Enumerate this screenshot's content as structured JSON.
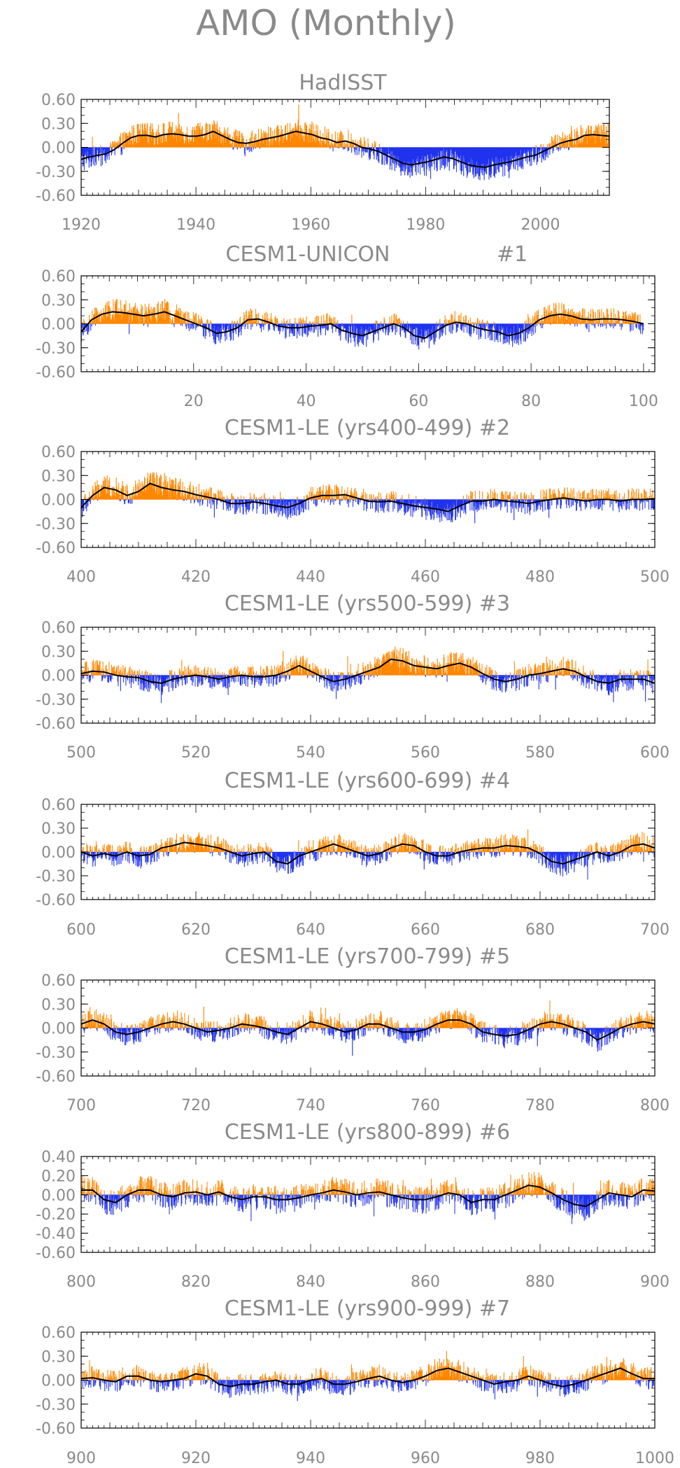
{
  "page_title": "AMO (Monthly)",
  "colors": {
    "positive": "#ff8800",
    "negative": "#2233ee",
    "smooth": "#000000",
    "axis": "#000000",
    "text": "#8a8a8a"
  },
  "chart_data": [
    {
      "type": "bar",
      "title": "HadISST",
      "x_start": 1920,
      "x_end": 2012,
      "xlim": [
        1920,
        2012
      ],
      "xticks": [
        1920,
        1940,
        1960,
        1980,
        2000
      ],
      "ylim": [
        -0.6,
        0.6
      ],
      "yticks": [
        0.6,
        0.3,
        0.0,
        -0.3,
        -0.6
      ],
      "ytick_labels": [
        "0.60",
        "0.30",
        "0.00",
        "-0.30",
        "-0.60"
      ],
      "values": [
        -0.15,
        -0.12,
        -0.1,
        -0.08,
        -0.03,
        0.05,
        0.12,
        0.15,
        0.15,
        0.13,
        0.16,
        0.17,
        0.16,
        0.14,
        0.14,
        0.16,
        0.2,
        0.15,
        0.1,
        0.06,
        0.05,
        0.07,
        0.1,
        0.12,
        0.14,
        0.17,
        0.2,
        0.18,
        0.16,
        0.12,
        0.1,
        0.06,
        0.08,
        0.05,
        0.0,
        -0.02,
        -0.05,
        -0.1,
        -0.15,
        -0.2,
        -0.22,
        -0.2,
        -0.18,
        -0.15,
        -0.12,
        -0.14,
        -0.18,
        -0.22,
        -0.24,
        -0.25,
        -0.22,
        -0.2,
        -0.18,
        -0.15,
        -0.12,
        -0.1,
        -0.05,
        0.0,
        0.05,
        0.08,
        0.1,
        0.15,
        0.16,
        0.15,
        0.14
      ]
    },
    {
      "type": "bar",
      "title": "CESM1-UNICON",
      "title_suffix": "#1",
      "x_start": 0,
      "x_end": 100,
      "xlim": [
        0,
        102
      ],
      "xticks": [
        20,
        40,
        60,
        80,
        100
      ],
      "ylim": [
        -0.6,
        0.6
      ],
      "yticks": [
        0.6,
        0.3,
        0.0,
        -0.3,
        -0.6
      ],
      "ytick_labels": [
        "0.60",
        "0.30",
        "0.00",
        "-0.30",
        "-0.60"
      ],
      "values": [
        -0.1,
        0.05,
        0.12,
        0.15,
        0.14,
        0.12,
        0.1,
        0.12,
        0.15,
        0.1,
        0.05,
        0.0,
        -0.05,
        -0.12,
        -0.1,
        -0.05,
        0.05,
        0.06,
        0.02,
        -0.03,
        -0.05,
        -0.05,
        -0.03,
        -0.02,
        0.0,
        -0.08,
        -0.12,
        -0.15,
        -0.1,
        -0.05,
        0.0,
        -0.05,
        -0.15,
        -0.18,
        -0.1,
        -0.02,
        0.02,
        0.0,
        -0.05,
        -0.08,
        -0.1,
        -0.15,
        -0.12,
        -0.05,
        0.05,
        0.1,
        0.12,
        0.1,
        0.06,
        0.05,
        0.06,
        0.06,
        0.05,
        0.03,
        0.0
      ]
    },
    {
      "type": "bar",
      "title": "CESM1-LE (yrs400-499)",
      "title_suffix": "#2",
      "x_start": 400,
      "x_end": 500,
      "xlim": [
        400,
        500
      ],
      "xticks": [
        400,
        420,
        440,
        460,
        480,
        500
      ],
      "ylim": [
        -0.6,
        0.6
      ],
      "yticks": [
        0.6,
        0.3,
        0.0,
        -0.3,
        -0.6
      ],
      "ytick_labels": [
        "0.60",
        "0.30",
        "0.00",
        "-0.30",
        "-0.60"
      ],
      "values": [
        -0.1,
        0.05,
        0.15,
        0.12,
        0.05,
        0.1,
        0.2,
        0.15,
        0.12,
        0.1,
        0.06,
        0.03,
        0.0,
        -0.05,
        -0.05,
        -0.03,
        -0.05,
        -0.08,
        -0.1,
        -0.05,
        0.02,
        0.05,
        0.05,
        0.06,
        0.02,
        -0.02,
        -0.03,
        -0.02,
        -0.05,
        -0.08,
        -0.1,
        -0.12,
        -0.15,
        -0.08,
        -0.02,
        -0.02,
        0.0,
        -0.02,
        -0.03,
        -0.05,
        -0.02,
        0.0,
        0.02,
        0.0,
        -0.02,
        0.0,
        0.0,
        -0.02,
        0.0,
        0.0,
        0.01
      ]
    },
    {
      "type": "bar",
      "title": "CESM1-LE (yrs500-599)",
      "title_suffix": "#3",
      "x_start": 500,
      "x_end": 600,
      "xlim": [
        500,
        600
      ],
      "xticks": [
        500,
        520,
        540,
        560,
        580,
        600
      ],
      "ylim": [
        -0.6,
        0.6
      ],
      "yticks": [
        0.6,
        0.3,
        0.0,
        -0.3,
        -0.6
      ],
      "ytick_labels": [
        "0.60",
        "0.30",
        "0.00",
        "-0.30",
        "-0.60"
      ],
      "values": [
        0.02,
        0.05,
        0.04,
        0.0,
        -0.02,
        -0.03,
        -0.08,
        -0.1,
        -0.05,
        -0.02,
        0.0,
        -0.02,
        -0.05,
        -0.02,
        0.0,
        -0.02,
        -0.02,
        0.0,
        0.05,
        0.12,
        0.05,
        -0.02,
        -0.08,
        -0.05,
        0.0,
        0.05,
        0.1,
        0.2,
        0.18,
        0.12,
        0.1,
        0.08,
        0.12,
        0.15,
        0.1,
        0.02,
        -0.05,
        -0.08,
        -0.05,
        0.0,
        0.02,
        0.05,
        0.08,
        0.05,
        -0.02,
        -0.08,
        -0.1,
        -0.05,
        -0.05,
        -0.05,
        -0.1
      ]
    },
    {
      "type": "bar",
      "title": "CESM1-LE (yrs600-699)",
      "title_suffix": "#4",
      "x_start": 600,
      "x_end": 700,
      "xlim": [
        600,
        700
      ],
      "xticks": [
        600,
        620,
        640,
        660,
        680,
        700
      ],
      "ylim": [
        -0.6,
        0.6
      ],
      "yticks": [
        0.6,
        0.3,
        0.0,
        -0.3,
        -0.6
      ],
      "ytick_labels": [
        "0.60",
        "0.30",
        "0.00",
        "-0.30",
        "-0.60"
      ],
      "values": [
        0.0,
        -0.05,
        -0.02,
        -0.05,
        0.0,
        -0.05,
        -0.03,
        0.05,
        0.08,
        0.12,
        0.1,
        0.08,
        0.05,
        0.0,
        -0.05,
        -0.02,
        0.0,
        -0.12,
        -0.15,
        -0.05,
        0.0,
        0.05,
        0.1,
        0.05,
        0.0,
        -0.05,
        -0.02,
        0.05,
        0.1,
        0.08,
        0.0,
        -0.05,
        -0.05,
        0.0,
        0.03,
        0.05,
        0.05,
        0.08,
        0.07,
        0.05,
        -0.02,
        -0.12,
        -0.15,
        -0.1,
        -0.05,
        0.0,
        -0.05,
        0.0,
        0.08,
        0.1,
        0.05
      ]
    },
    {
      "type": "bar",
      "title": "CESM1-LE (yrs700-799)",
      "title_suffix": "#5",
      "x_start": 700,
      "x_end": 800,
      "xlim": [
        700,
        800
      ],
      "xticks": [
        700,
        720,
        740,
        760,
        780,
        800
      ],
      "ylim": [
        -0.6,
        0.6
      ],
      "yticks": [
        0.6,
        0.3,
        0.0,
        -0.3,
        -0.6
      ],
      "ytick_labels": [
        "0.60",
        "0.30",
        "0.00",
        "-0.30",
        "-0.60"
      ],
      "values": [
        0.05,
        0.1,
        0.05,
        -0.05,
        -0.08,
        -0.05,
        0.0,
        0.05,
        0.08,
        0.05,
        0.0,
        -0.05,
        -0.03,
        0.0,
        0.05,
        0.03,
        0.0,
        -0.05,
        -0.08,
        0.0,
        0.08,
        0.05,
        0.0,
        -0.05,
        -0.02,
        0.05,
        0.05,
        0.0,
        -0.05,
        -0.05,
        -0.02,
        0.05,
        0.1,
        0.1,
        0.05,
        -0.05,
        -0.08,
        -0.1,
        -0.08,
        -0.02,
        0.05,
        0.08,
        0.05,
        0.0,
        -0.05,
        -0.15,
        -0.08,
        0.0,
        0.05,
        0.08,
        0.05
      ]
    },
    {
      "type": "bar",
      "title": "CESM1-LE (yrs800-899)",
      "title_suffix": "#6",
      "x_start": 800,
      "x_end": 900,
      "xlim": [
        800,
        900
      ],
      "xticks": [
        800,
        820,
        840,
        860,
        880,
        900
      ],
      "ylim": [
        -0.6,
        0.4
      ],
      "yticks": [
        0.4,
        0.2,
        0.0,
        -0.2,
        -0.4,
        -0.6
      ],
      "ytick_labels": [
        "0.40",
        "0.20",
        "0.00",
        "-0.20",
        "-0.40",
        "-0.60"
      ],
      "values": [
        0.05,
        0.05,
        -0.05,
        -0.08,
        0.0,
        0.05,
        0.05,
        0.0,
        -0.02,
        0.02,
        0.03,
        0.0,
        0.03,
        -0.02,
        -0.05,
        -0.02,
        -0.02,
        -0.05,
        -0.05,
        -0.03,
        0.0,
        0.02,
        0.05,
        0.03,
        0.0,
        0.02,
        0.03,
        0.0,
        -0.03,
        -0.05,
        -0.05,
        -0.02,
        0.02,
        0.0,
        -0.08,
        -0.05,
        -0.05,
        0.0,
        0.05,
        0.1,
        0.08,
        0.02,
        -0.05,
        -0.1,
        -0.12,
        -0.05,
        0.02,
        0.0,
        -0.02,
        0.05,
        0.04
      ]
    },
    {
      "type": "bar",
      "title": "CESM1-LE (yrs900-999)",
      "title_suffix": "#7",
      "x_start": 900,
      "x_end": 1000,
      "xlim": [
        900,
        1000
      ],
      "xticks": [
        900,
        920,
        940,
        960,
        980,
        1000
      ],
      "ylim": [
        -0.6,
        0.6
      ],
      "yticks": [
        0.6,
        0.3,
        0.0,
        -0.3,
        -0.6
      ],
      "ytick_labels": [
        "0.60",
        "0.30",
        "0.00",
        "-0.30",
        "-0.60"
      ],
      "values": [
        0.02,
        0.03,
        0.0,
        -0.02,
        0.05,
        0.05,
        0.0,
        -0.02,
        0.0,
        0.02,
        0.08,
        0.05,
        -0.05,
        -0.08,
        -0.05,
        -0.05,
        -0.02,
        0.0,
        -0.05,
        -0.05,
        0.0,
        0.02,
        -0.05,
        -0.05,
        -0.02,
        0.02,
        0.05,
        0.0,
        -0.03,
        0.0,
        0.05,
        0.12,
        0.15,
        0.1,
        0.05,
        0.0,
        -0.05,
        -0.02,
        0.0,
        0.05,
        0.0,
        -0.05,
        -0.08,
        -0.05,
        0.0,
        0.05,
        0.1,
        0.15,
        0.08,
        0.02,
        0.02
      ]
    }
  ]
}
